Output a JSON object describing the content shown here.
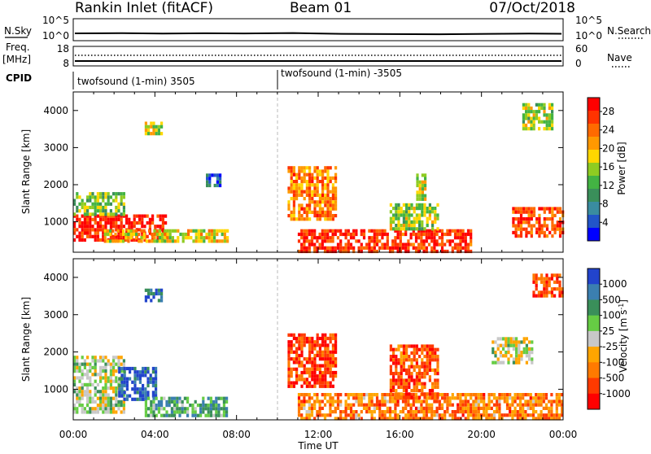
{
  "header": {
    "station": "Rankin Inlet (fitACF)",
    "beam": "Beam 01",
    "date": "07/Oct/2018"
  },
  "noise_panel": {
    "left_label": "N.Sky",
    "right_label": "N.Search",
    "ticks_left": [
      "10^5",
      "10^0"
    ],
    "ticks_right": [
      "10^5",
      "10^0"
    ]
  },
  "freq_panel": {
    "left_label": "Freq.",
    "left_unit": "[MHz]",
    "right_label": "Nave",
    "ticks_left": [
      "18",
      "8"
    ],
    "ticks_right": [
      "60",
      "0"
    ]
  },
  "cpid": {
    "label": "CPID",
    "segments": [
      {
        "text": "twofsound (1-min) 3505",
        "start_hour": 0
      },
      {
        "text": "twofsound (1-min) -3505",
        "start_hour": 10
      }
    ]
  },
  "time_axis": {
    "label": "Time UT",
    "tick_labels": [
      "00:00",
      "04:00",
      "08:00",
      "12:00",
      "16:00",
      "20:00",
      "00:00"
    ]
  },
  "range_axis": {
    "label": "Slant Range [km]",
    "tick_labels": [
      "1000",
      "2000",
      "3000",
      "4000"
    ]
  },
  "colors": {
    "power_scale": [
      "#0000ff",
      "#2255c8",
      "#3a8ca0",
      "#3a8f5a",
      "#43b343",
      "#8fcc22",
      "#ffd700",
      "#ff9900",
      "#ff6a00",
      "#ff3300",
      "#ff0000"
    ],
    "velocity_scale": [
      "#2244cc",
      "#3b7fb0",
      "#3a8f5a",
      "#66cc44",
      "#c8c8c8",
      "#ffa500",
      "#ff7a00",
      "#ff3a00",
      "#ff0000"
    ]
  },
  "chart_data": [
    {
      "type": "heatmap",
      "name": "Power",
      "xlabel": "Time UT",
      "ylabel": "Slant Range [km]",
      "colorbar": {
        "label": "Power [dB]",
        "tick_labels": [
          "4",
          "8",
          "12",
          "16",
          "20",
          "24",
          "28"
        ]
      },
      "xlim": [
        0,
        24
      ],
      "ylim": [
        180,
        4500
      ],
      "regions": [
        {
          "t0": 0.0,
          "t1": 4.5,
          "r0": 500,
          "r1": 1200,
          "level": 0.95
        },
        {
          "t0": 0.0,
          "t1": 2.5,
          "r0": 1200,
          "r1": 1800,
          "level": 0.45
        },
        {
          "t0": 1.5,
          "t1": 7.5,
          "r0": 450,
          "r1": 800,
          "level": 0.6
        },
        {
          "t0": 3.5,
          "t1": 4.3,
          "r0": 3400,
          "r1": 3700,
          "level": 0.55
        },
        {
          "t0": 6.5,
          "t1": 7.2,
          "r0": 2000,
          "r1": 2300,
          "level": 0.2
        },
        {
          "t0": 10.5,
          "t1": 12.8,
          "r0": 1100,
          "r1": 2500,
          "level": 0.75
        },
        {
          "t0": 11.0,
          "t1": 19.5,
          "r0": 200,
          "r1": 800,
          "level": 0.9
        },
        {
          "t0": 15.5,
          "t1": 17.8,
          "r0": 800,
          "r1": 1500,
          "level": 0.5
        },
        {
          "t0": 16.8,
          "t1": 17.3,
          "r0": 1600,
          "r1": 2300,
          "level": 0.55
        },
        {
          "t0": 21.5,
          "t1": 24.0,
          "r0": 600,
          "r1": 1400,
          "level": 0.85
        },
        {
          "t0": 22.0,
          "t1": 23.5,
          "r0": 3500,
          "r1": 4200,
          "level": 0.5
        }
      ]
    },
    {
      "type": "heatmap",
      "name": "Velocity",
      "xlabel": "Time UT",
      "ylabel": "Slant Range [km]",
      "colorbar": {
        "label": "Velocity [m s-1]",
        "tick_labels": [
          "1000",
          "500",
          "100",
          "25",
          "-25",
          "-100",
          "-500",
          "-1000"
        ]
      },
      "xlim": [
        0,
        24
      ],
      "ylim": [
        180,
        4500
      ],
      "regions": [
        {
          "t0": 0.0,
          "t1": 2.5,
          "r0": 400,
          "r1": 1900,
          "level": 0.45
        },
        {
          "t0": 2.2,
          "t1": 4.0,
          "r0": 700,
          "r1": 1600,
          "level": 0.1
        },
        {
          "t0": 3.5,
          "t1": 7.5,
          "r0": 300,
          "r1": 800,
          "level": 0.3
        },
        {
          "t0": 3.5,
          "t1": 4.3,
          "r0": 3400,
          "r1": 3700,
          "level": 0.15
        },
        {
          "t0": 10.5,
          "t1": 12.8,
          "r0": 1100,
          "r1": 2500,
          "level": 0.85
        },
        {
          "t0": 11.0,
          "t1": 24.0,
          "r0": 200,
          "r1": 900,
          "level": 0.72
        },
        {
          "t0": 15.5,
          "t1": 17.8,
          "r0": 800,
          "r1": 2200,
          "level": 0.8
        },
        {
          "t0": 20.5,
          "t1": 22.5,
          "r0": 1700,
          "r1": 2400,
          "level": 0.48
        },
        {
          "t0": 22.5,
          "t1": 24.0,
          "r0": 3500,
          "r1": 4100,
          "level": 0.85
        }
      ]
    }
  ]
}
